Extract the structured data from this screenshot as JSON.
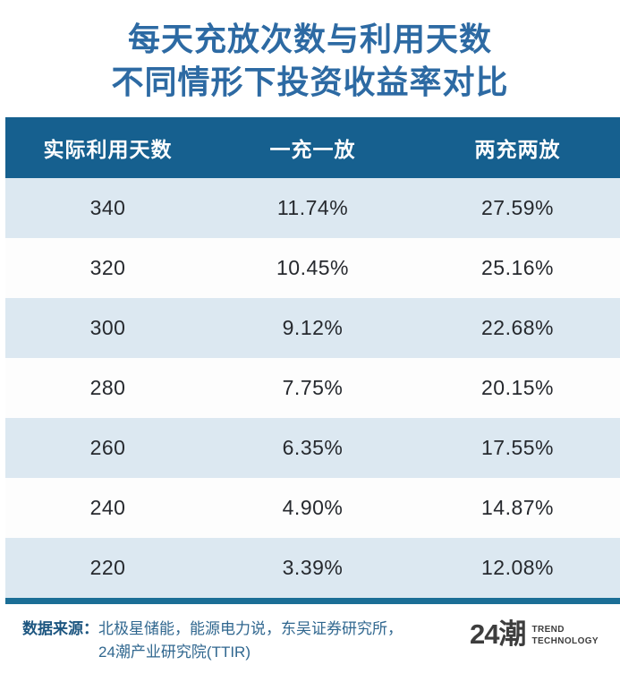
{
  "title": {
    "line1": "每天充放次数与利用天数",
    "line2": "不同情形下投资收益率对比"
  },
  "table": {
    "headers": [
      "实际利用天数",
      "一充一放",
      "两充两放"
    ],
    "rows": [
      {
        "days": "340",
        "one_cycle": "11.74%",
        "two_cycle": "27.59%"
      },
      {
        "days": "320",
        "one_cycle": "10.45%",
        "two_cycle": "25.16%"
      },
      {
        "days": "300",
        "one_cycle": "9.12%",
        "two_cycle": "22.68%"
      },
      {
        "days": "280",
        "one_cycle": "7.75%",
        "two_cycle": "20.15%"
      },
      {
        "days": "260",
        "one_cycle": "6.35%",
        "two_cycle": "17.55%"
      },
      {
        "days": "240",
        "one_cycle": "4.90%",
        "two_cycle": "14.87%"
      },
      {
        "days": "220",
        "one_cycle": "3.39%",
        "two_cycle": "12.08%"
      }
    ]
  },
  "footer": {
    "source_label": "数据来源：",
    "source_line1": "北极星储能，能源电力说，东吴证券研究所，",
    "source_line2": "24潮产业研究院(TTIR)",
    "logo_text": "24潮",
    "logo_sub_line1": "TREND",
    "logo_sub_line2": "TECHNOLOGY"
  },
  "colors": {
    "title_blue": "#2d6aa3",
    "header_bg": "#16608f",
    "row_alt_bg": "#dce8f1",
    "row_plain_bg": "#fdfdfd",
    "bottom_rule": "#1b6e96",
    "footer_text": "#30678f",
    "cell_text": "#26292e",
    "logo_gray": "#3d3d3d"
  },
  "chart_data": {
    "type": "table",
    "title": "每天充放次数与利用天数 不同情形下投资收益率对比",
    "columns": [
      "实际利用天数",
      "一充一放",
      "两充两放"
    ],
    "rows": [
      [
        340,
        "11.74%",
        "27.59%"
      ],
      [
        320,
        "10.45%",
        "25.16%"
      ],
      [
        300,
        "9.12%",
        "22.68%"
      ],
      [
        280,
        "7.75%",
        "20.15%"
      ],
      [
        260,
        "6.35%",
        "17.55%"
      ],
      [
        240,
        "4.90%",
        "14.87%"
      ],
      [
        220,
        "3.39%",
        "12.08%"
      ]
    ],
    "source": "北极星储能，能源电力说，东吴证券研究所，24潮产业研究院(TTIR)"
  }
}
